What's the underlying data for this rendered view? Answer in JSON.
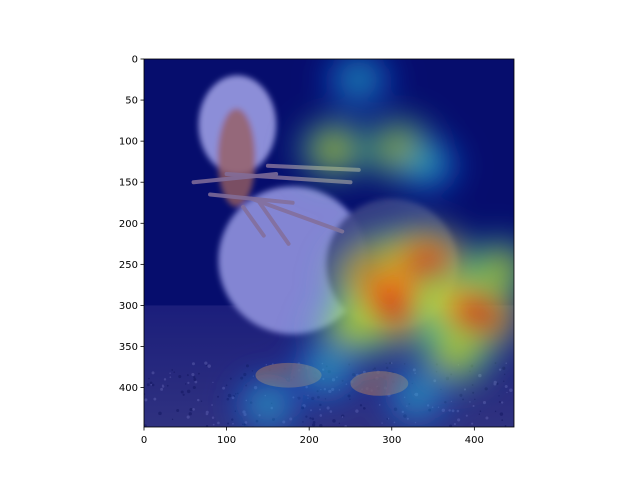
{
  "chart_data": {
    "type": "heatmap",
    "title": "",
    "xlabel": "",
    "ylabel": "",
    "xlim": [
      0,
      448
    ],
    "ylim": [
      448,
      0
    ],
    "x_ticks": [
      0,
      100,
      200,
      300,
      400
    ],
    "y_ticks": [
      0,
      50,
      100,
      150,
      200,
      250,
      300,
      350,
      400
    ],
    "grid": false,
    "legend": "none",
    "colormap": "jet",
    "background_image": "puffin-with-fish",
    "background_colors": {
      "sky": "#0a0c4a",
      "body": "#c9c4e6",
      "ground": "#3a3552",
      "beak": "#e8883a"
    },
    "heat_hotspots": [
      {
        "x": 260,
        "y": 25,
        "intensity": 0.45
      },
      {
        "x": 230,
        "y": 110,
        "intensity": 0.5
      },
      {
        "x": 310,
        "y": 110,
        "intensity": 0.55
      },
      {
        "x": 345,
        "y": 130,
        "intensity": 0.35
      },
      {
        "x": 290,
        "y": 270,
        "intensity": 1.0
      },
      {
        "x": 340,
        "y": 255,
        "intensity": 0.9
      },
      {
        "x": 300,
        "y": 300,
        "intensity": 0.85
      },
      {
        "x": 370,
        "y": 300,
        "intensity": 0.7
      },
      {
        "x": 400,
        "y": 310,
        "intensity": 0.8
      },
      {
        "x": 375,
        "y": 360,
        "intensity": 0.6
      },
      {
        "x": 430,
        "y": 255,
        "intensity": 0.5
      },
      {
        "x": 250,
        "y": 330,
        "intensity": 0.55
      },
      {
        "x": 220,
        "y": 380,
        "intensity": 0.45
      },
      {
        "x": 150,
        "y": 420,
        "intensity": 0.4
      },
      {
        "x": 330,
        "y": 410,
        "intensity": 0.4
      }
    ]
  }
}
